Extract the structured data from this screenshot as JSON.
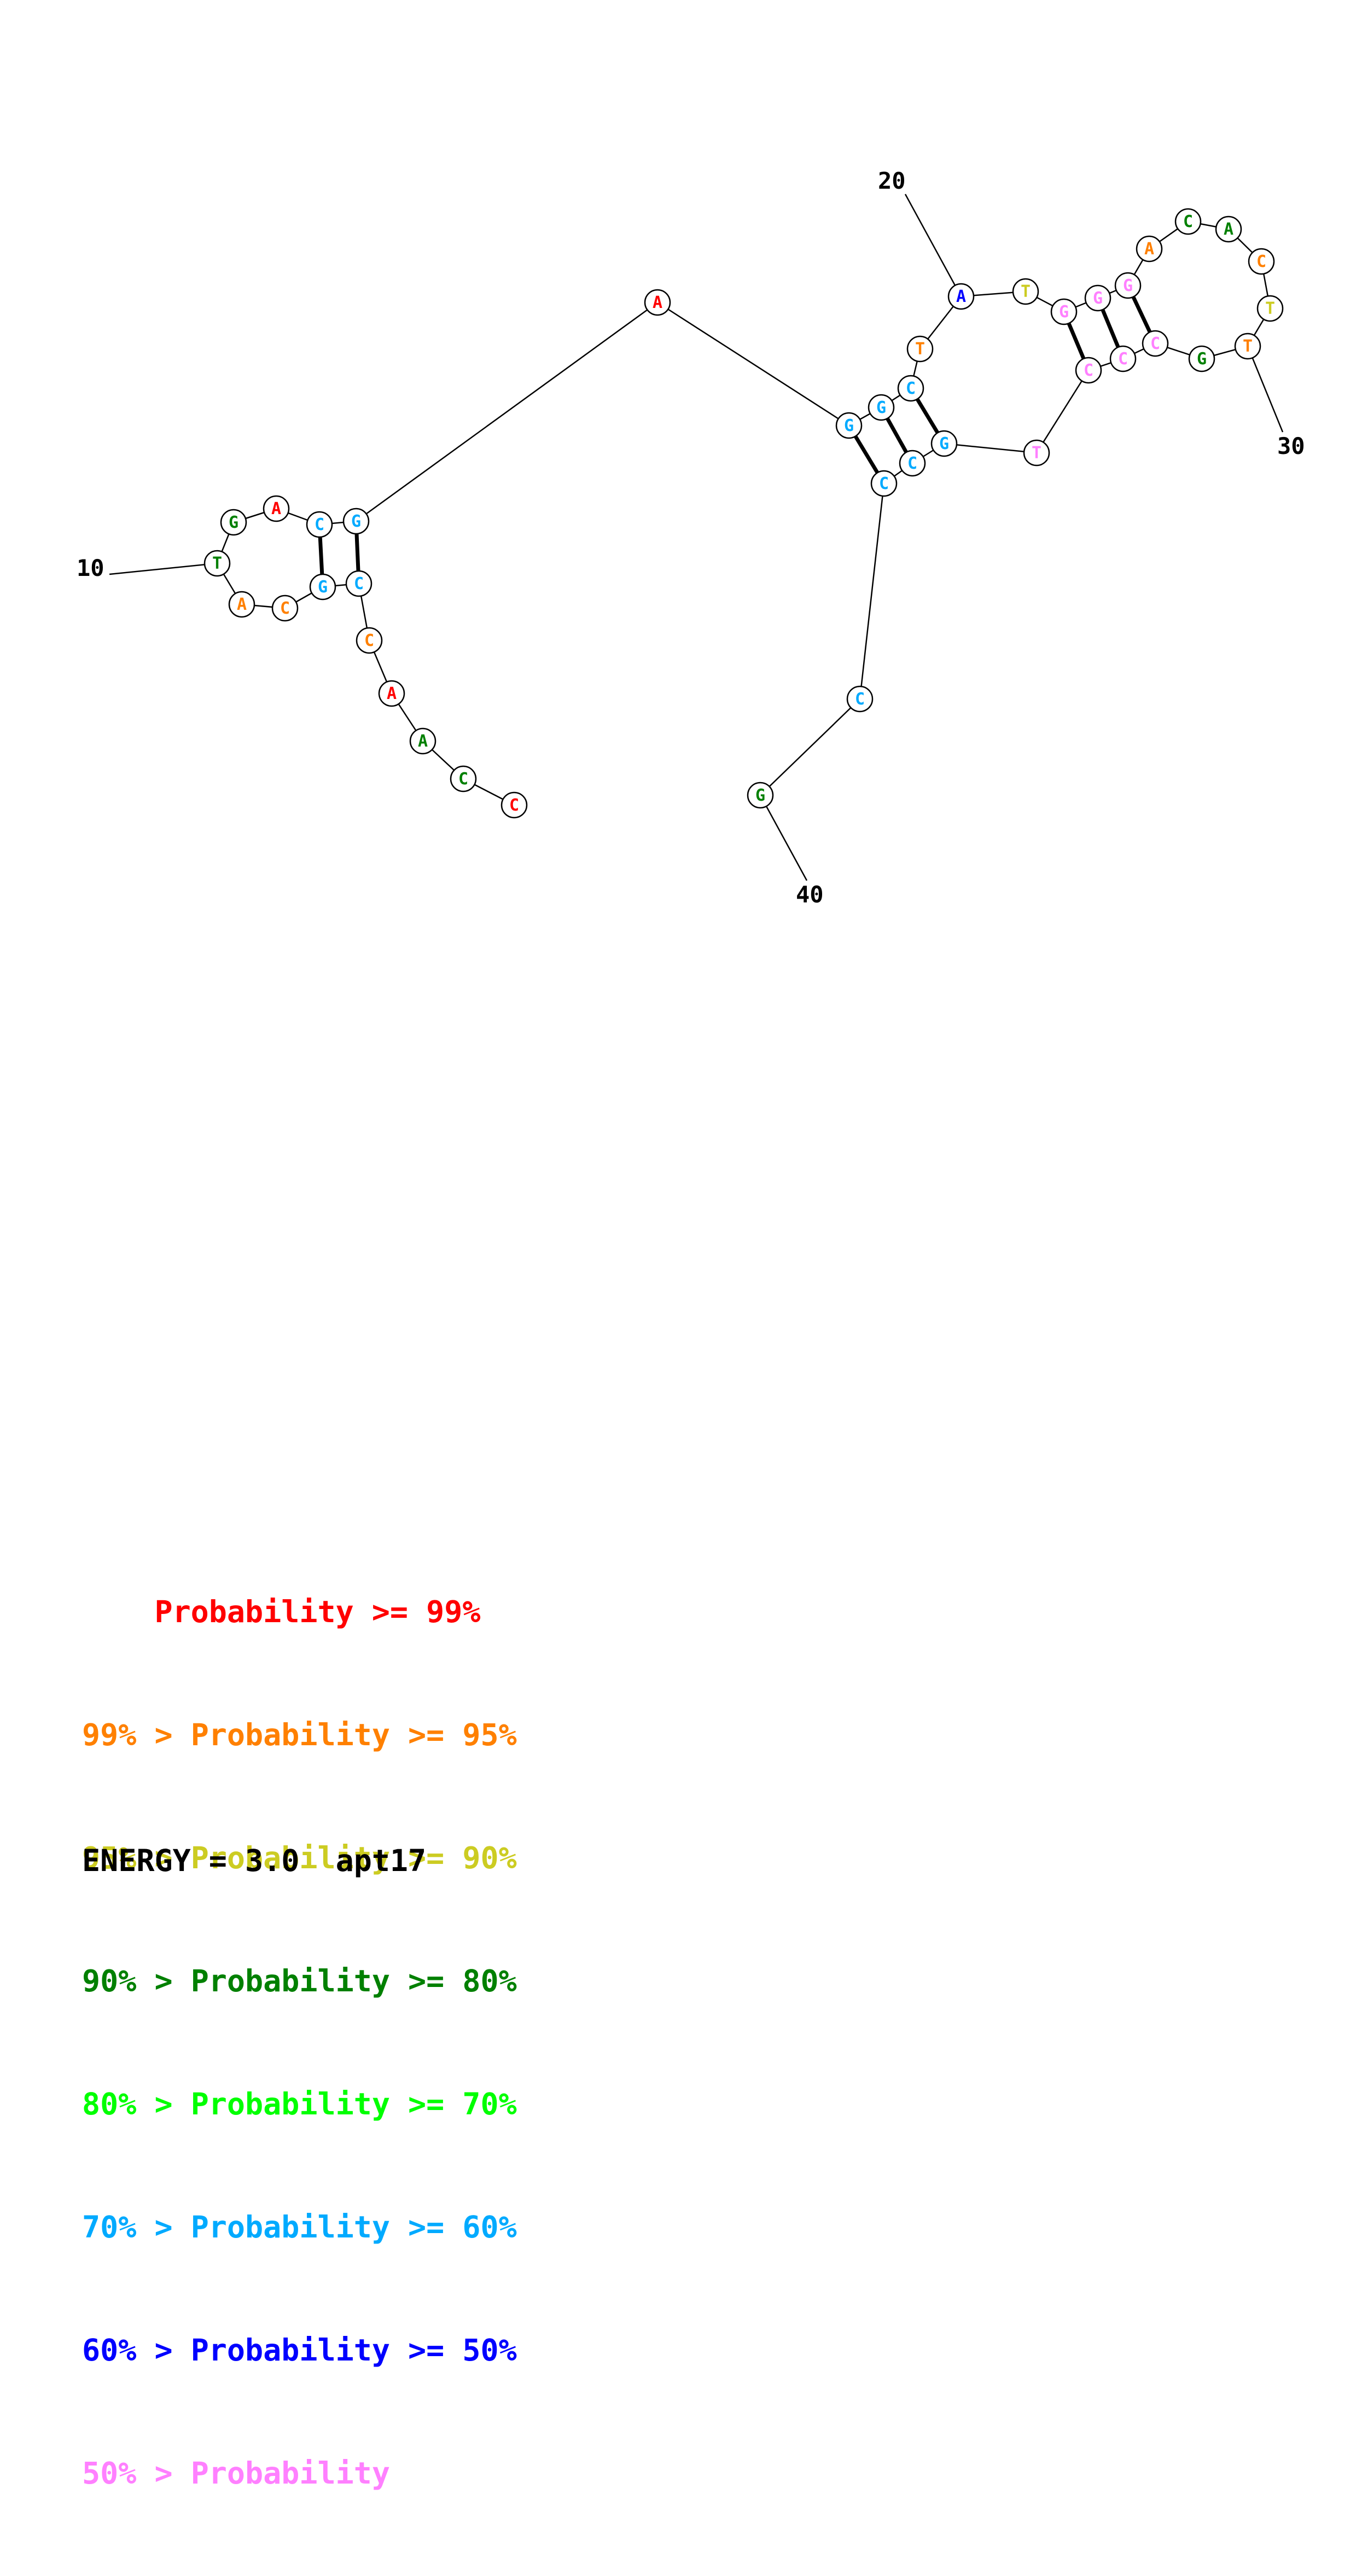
{
  "colors": {
    "p99": "#ff0000",
    "p95": "#ff8000",
    "p90": "#cccc22",
    "p80": "#008000",
    "p70": "#00ff00",
    "p60": "#00aaff",
    "p50": "#0000ff",
    "plow": "#ff80ff"
  },
  "nucleotides": [
    {
      "base": "C",
      "prob": "p99"
    },
    {
      "base": "C",
      "prob": "p80"
    },
    {
      "base": "A",
      "prob": "p80"
    },
    {
      "base": "A",
      "prob": "p99"
    },
    {
      "base": "C",
      "prob": "p95"
    },
    {
      "base": "C",
      "prob": "p60"
    },
    {
      "base": "G",
      "prob": "p60"
    },
    {
      "base": "C",
      "prob": "p95"
    },
    {
      "base": "A",
      "prob": "p95"
    },
    {
      "base": "T",
      "prob": "p80"
    },
    {
      "base": "G",
      "prob": "p80"
    },
    {
      "base": "A",
      "prob": "p99"
    },
    {
      "base": "C",
      "prob": "p60"
    },
    {
      "base": "G",
      "prob": "p60"
    },
    {
      "base": "A",
      "prob": "p99"
    },
    {
      "base": "G",
      "prob": "p60"
    },
    {
      "base": "G",
      "prob": "p60"
    },
    {
      "base": "C",
      "prob": "p60"
    },
    {
      "base": "T",
      "prob": "p95"
    },
    {
      "base": "A",
      "prob": "p50"
    },
    {
      "base": "T",
      "prob": "p90"
    },
    {
      "base": "G",
      "prob": "plow"
    },
    {
      "base": "G",
      "prob": "plow"
    },
    {
      "base": "G",
      "prob": "plow"
    },
    {
      "base": "A",
      "prob": "p95"
    },
    {
      "base": "C",
      "prob": "p80"
    },
    {
      "base": "A",
      "prob": "p80"
    },
    {
      "base": "C",
      "prob": "p95"
    },
    {
      "base": "T",
      "prob": "p90"
    },
    {
      "base": "T",
      "prob": "p95"
    },
    {
      "base": "G",
      "prob": "p80"
    },
    {
      "base": "C",
      "prob": "plow"
    },
    {
      "base": "C",
      "prob": "plow"
    },
    {
      "base": "C",
      "prob": "plow"
    },
    {
      "base": "T",
      "prob": "plow"
    },
    {
      "base": "G",
      "prob": "p60"
    },
    {
      "base": "C",
      "prob": "p60"
    },
    {
      "base": "C",
      "prob": "p60"
    },
    {
      "base": "C",
      "prob": "p60"
    },
    {
      "base": "G",
      "prob": "p80"
    }
  ],
  "base_pairs": [
    [
      6,
      14
    ],
    [
      7,
      13
    ],
    [
      16,
      38
    ],
    [
      17,
      37
    ],
    [
      18,
      36
    ],
    [
      22,
      34
    ],
    [
      23,
      33
    ],
    [
      24,
      32
    ]
  ],
  "position_labels": [
    "10",
    "20",
    "30",
    "40"
  ],
  "legend": [
    {
      "prefix": "    ",
      "text": "Probability >= 99%",
      "color_key": "p99"
    },
    {
      "prefix": "99% > ",
      "text": "Probability >= 95%",
      "color_key": "p95"
    },
    {
      "prefix": "95% > ",
      "text": "Probability >= 90%",
      "color_key": "p90"
    },
    {
      "prefix": "90% > ",
      "text": "Probability >= 80%",
      "color_key": "p80"
    },
    {
      "prefix": "80% > ",
      "text": "Probability >= 70%",
      "color_key": "p70"
    },
    {
      "prefix": "70% > ",
      "text": "Probability >= 60%",
      "color_key": "p60"
    },
    {
      "prefix": "60% > ",
      "text": "Probability >= 50%",
      "color_key": "p50"
    },
    {
      "prefix": "50% > ",
      "text": "Probability",
      "color_key": "plow"
    }
  ],
  "energy": "ENERGY = 3.0",
  "name": "apt17"
}
